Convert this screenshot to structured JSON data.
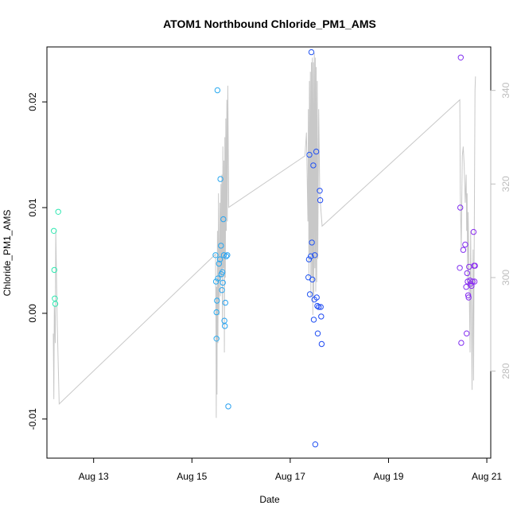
{
  "chart_data": {
    "type": "scatter",
    "title": "ATOM1 Northbound Chloride_PM1_AMS",
    "xlabel": "Date",
    "ylabel": "Chloride_PM1_AMS",
    "ylabel_right": "",
    "x_unit": "days (August 2016)",
    "xlim": [
      12.05,
      21.08
    ],
    "ylim": [
      -0.0137,
      0.0252
    ],
    "ylim_right": [
      261.4,
      349.3
    ],
    "x_ticks": [
      13,
      15,
      17,
      19,
      21
    ],
    "x_tick_labels": [
      "Aug 13",
      "Aug 15",
      "Aug 17",
      "Aug 19",
      "Aug 21"
    ],
    "y_ticks": [
      -0.01,
      0.0,
      0.01,
      0.02
    ],
    "y_tick_labels": [
      "-0.01",
      "0.00",
      "0.01",
      "0.02"
    ],
    "y_right_ticks": [
      280,
      300,
      320,
      340
    ],
    "y_right_tick_labels": [
      "280",
      "300",
      "320",
      "340"
    ],
    "grid": false,
    "legend": "none",
    "colors": {
      "frame": "#000000",
      "secondary_line": "#c8c8c8",
      "right_axis": "#bdbdbd",
      "gradient": [
        "#2ee8b0",
        "#2bbff0",
        "#1f3ef2",
        "#8b2cf0"
      ]
    },
    "points": [
      {
        "x": 12.19,
        "y": 0.0078
      },
      {
        "x": 12.2,
        "y": 0.0041
      },
      {
        "x": 12.21,
        "y": 0.0014
      },
      {
        "x": 12.22,
        "y": 0.0009
      },
      {
        "x": 12.28,
        "y": 0.0096
      },
      {
        "x": 15.48,
        "y": 0.0055
      },
      {
        "x": 15.49,
        "y": 0.003
      },
      {
        "x": 15.5,
        "y": 0.0001
      },
      {
        "x": 15.5,
        "y": -0.0024
      },
      {
        "x": 15.51,
        "y": 0.0012
      },
      {
        "x": 15.52,
        "y": 0.0211
      },
      {
        "x": 15.53,
        "y": 0.0033
      },
      {
        "x": 15.55,
        "y": 0.0047
      },
      {
        "x": 15.57,
        "y": 0.0051
      },
      {
        "x": 15.58,
        "y": 0.0127
      },
      {
        "x": 15.59,
        "y": 0.0064
      },
      {
        "x": 15.6,
        "y": 0.0037
      },
      {
        "x": 15.61,
        "y": 0.0022
      },
      {
        "x": 15.62,
        "y": 0.0039
      },
      {
        "x": 15.63,
        "y": 0.0029
      },
      {
        "x": 15.64,
        "y": 0.0089
      },
      {
        "x": 15.65,
        "y": 0.0055
      },
      {
        "x": 15.66,
        "y": -0.0007
      },
      {
        "x": 15.67,
        "y": -0.0012
      },
      {
        "x": 15.68,
        "y": 0.001
      },
      {
        "x": 15.7,
        "y": 0.0054
      },
      {
        "x": 15.72,
        "y": 0.0055
      },
      {
        "x": 15.74,
        "y": -0.0088
      },
      {
        "x": 17.37,
        "y": 0.0034
      },
      {
        "x": 17.38,
        "y": 0.0051
      },
      {
        "x": 17.39,
        "y": 0.015
      },
      {
        "x": 17.4,
        "y": 0.0018
      },
      {
        "x": 17.42,
        "y": 0.0054
      },
      {
        "x": 17.43,
        "y": 0.0247
      },
      {
        "x": 17.44,
        "y": 0.0067
      },
      {
        "x": 17.45,
        "y": 0.0032
      },
      {
        "x": 17.47,
        "y": 0.014
      },
      {
        "x": 17.48,
        "y": -0.0006
      },
      {
        "x": 17.49,
        "y": 0.0013
      },
      {
        "x": 17.5,
        "y": 0.0055
      },
      {
        "x": 17.51,
        "y": -0.0124
      },
      {
        "x": 17.53,
        "y": 0.0153
      },
      {
        "x": 17.54,
        "y": 0.0015
      },
      {
        "x": 17.55,
        "y": 0.0007
      },
      {
        "x": 17.56,
        "y": -0.0019
      },
      {
        "x": 17.58,
        "y": 0.0006
      },
      {
        "x": 17.6,
        "y": 0.0116
      },
      {
        "x": 17.61,
        "y": 0.0107
      },
      {
        "x": 17.62,
        "y": 0.0006
      },
      {
        "x": 17.63,
        "y": -0.0003
      },
      {
        "x": 17.64,
        "y": -0.0029
      },
      {
        "x": 20.45,
        "y": 0.0043
      },
      {
        "x": 20.46,
        "y": 0.01
      },
      {
        "x": 20.47,
        "y": 0.0242
      },
      {
        "x": 20.48,
        "y": -0.0028
      },
      {
        "x": 20.52,
        "y": 0.006
      },
      {
        "x": 20.56,
        "y": 0.0065
      },
      {
        "x": 20.58,
        "y": 0.0025
      },
      {
        "x": 20.59,
        "y": -0.0019
      },
      {
        "x": 20.6,
        "y": 0.0038
      },
      {
        "x": 20.61,
        "y": 0.003
      },
      {
        "x": 20.62,
        "y": 0.0017
      },
      {
        "x": 20.63,
        "y": 0.0015
      },
      {
        "x": 20.64,
        "y": 0.0044
      },
      {
        "x": 20.66,
        "y": 0.0031
      },
      {
        "x": 20.67,
        "y": 0.0028
      },
      {
        "x": 20.69,
        "y": 0.0026
      },
      {
        "x": 20.71,
        "y": 0.003
      },
      {
        "x": 20.73,
        "y": 0.0077
      },
      {
        "x": 20.74,
        "y": 0.0045
      },
      {
        "x": 20.75,
        "y": 0.003
      },
      {
        "x": 20.76,
        "y": 0.0045
      }
    ],
    "secondary_series": {
      "axis": "right",
      "values": [
        [
          12.18,
          288.0
        ],
        [
          12.19,
          274.0
        ],
        [
          12.2,
          294.0
        ],
        [
          12.22,
          286.0
        ],
        [
          12.23,
          310.0
        ],
        [
          12.26,
          290.0
        ],
        [
          12.3,
          273.0
        ],
        [
          15.48,
          305.0
        ],
        [
          15.49,
          285.0
        ],
        [
          15.495,
          270.0
        ],
        [
          15.5,
          298.0
        ],
        [
          15.51,
          275.0
        ],
        [
          15.52,
          310.0
        ],
        [
          15.53,
          286.0
        ],
        [
          15.54,
          318.0
        ],
        [
          15.55,
          292.0
        ],
        [
          15.57,
          316.0
        ],
        [
          15.58,
          296.0
        ],
        [
          15.59,
          320.0
        ],
        [
          15.6,
          300.0
        ],
        [
          15.61,
          322.0
        ],
        [
          15.62,
          290.0
        ],
        [
          15.63,
          328.0
        ],
        [
          15.64,
          302.0
        ],
        [
          15.65,
          325.0
        ],
        [
          15.66,
          284.0
        ],
        [
          15.67,
          330.0
        ],
        [
          15.68,
          300.0
        ],
        [
          15.69,
          334.0
        ],
        [
          15.7,
          310.0
        ],
        [
          15.71,
          338.0
        ],
        [
          15.72,
          312.0
        ],
        [
          15.73,
          341.0
        ],
        [
          15.75,
          315.0
        ],
        [
          17.3,
          326.0
        ],
        [
          17.33,
          331.0
        ],
        [
          17.36,
          312.0
        ],
        [
          17.37,
          336.0
        ],
        [
          17.38,
          300.0
        ],
        [
          17.39,
          342.0
        ],
        [
          17.4,
          305.0
        ],
        [
          17.41,
          344.0
        ],
        [
          17.42,
          296.0
        ],
        [
          17.43,
          346.0
        ],
        [
          17.44,
          300.0
        ],
        [
          17.45,
          347.0
        ],
        [
          17.46,
          292.0
        ],
        [
          17.47,
          346.0
        ],
        [
          17.48,
          296.0
        ],
        [
          17.49,
          348.0
        ],
        [
          17.5,
          302.0
        ],
        [
          17.51,
          347.0
        ],
        [
          17.52,
          297.0
        ],
        [
          17.53,
          345.0
        ],
        [
          17.54,
          299.0
        ],
        [
          17.55,
          342.0
        ],
        [
          17.56,
          304.0
        ],
        [
          17.58,
          336.0
        ],
        [
          17.6,
          318.0
        ],
        [
          17.62,
          315.0
        ],
        [
          17.65,
          311.0
        ],
        [
          20.45,
          338.0
        ],
        [
          20.46,
          318.0
        ],
        [
          20.48,
          306.0
        ],
        [
          20.5,
          326.0
        ],
        [
          20.52,
          328.0
        ],
        [
          20.54,
          324.0
        ],
        [
          20.56,
          316.0
        ],
        [
          20.58,
          322.0
        ],
        [
          20.59,
          310.0
        ],
        [
          20.6,
          318.0
        ],
        [
          20.61,
          298.0
        ],
        [
          20.62,
          314.0
        ],
        [
          20.64,
          300.0
        ],
        [
          20.66,
          284.0
        ],
        [
          20.67,
          310.0
        ],
        [
          20.68,
          300.0
        ],
        [
          20.7,
          276.0
        ],
        [
          20.71,
          292.0
        ],
        [
          20.72,
          306.0
        ],
        [
          20.73,
          278.0
        ],
        [
          20.74,
          300.0
        ],
        [
          20.75,
          320.0
        ],
        [
          20.76,
          340.0
        ],
        [
          20.77,
          343.0
        ]
      ]
    }
  }
}
